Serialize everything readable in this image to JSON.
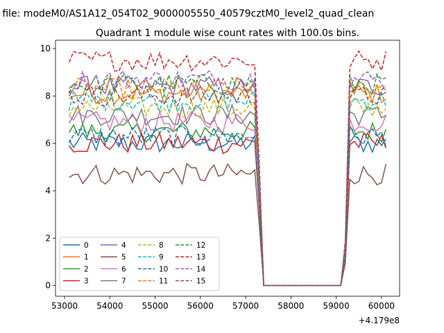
{
  "suptitle": "n file: modeM0/AS1A12_054T02_9000005550_40579cztM0_level2_quad_clean",
  "chart_data": {
    "type": "line",
    "title": "Quadrant 1 module wise count rates with 100.0s bins.",
    "xlabel": "",
    "ylabel": "",
    "x_offset_label": "+4.179e8",
    "xlim": [
      52800,
      60400
    ],
    "ylim": [
      -0.45,
      10.35
    ],
    "xticks": [
      53000,
      54000,
      55000,
      56000,
      57000,
      58000,
      59000,
      60000
    ],
    "yticks": [
      0,
      2,
      4,
      6,
      8,
      10
    ],
    "x_range": {
      "start": 53100,
      "step": 100,
      "count": 71
    },
    "gap_bins": [
      43,
      44,
      45,
      46,
      47,
      48,
      49,
      50,
      51,
      52,
      53,
      54,
      55,
      56,
      57,
      58,
      59,
      60
    ],
    "grid": false,
    "legend": {
      "location": "lower-left",
      "columns": 4
    },
    "series": [
      {
        "name": "0",
        "color": "#1f77b4",
        "dash": "solid",
        "level": 6.0
      },
      {
        "name": "1",
        "color": "#ff7f0e",
        "dash": "solid",
        "level": 8.1
      },
      {
        "name": "2",
        "color": "#2ca02c",
        "dash": "solid",
        "level": 6.5
      },
      {
        "name": "3",
        "color": "#d62728",
        "dash": "solid",
        "level": 6.0
      },
      {
        "name": "4",
        "color": "#9467bd",
        "dash": "solid",
        "level": 8.4
      },
      {
        "name": "5",
        "color": "#8c564b",
        "dash": "solid",
        "level": 4.7
      },
      {
        "name": "6",
        "color": "#e377c2",
        "dash": "solid",
        "level": 6.9
      },
      {
        "name": "7",
        "color": "#7f7f7f",
        "dash": "solid",
        "level": 7.2
      },
      {
        "name": "8",
        "color": "#bcbd22",
        "dash": "dashed",
        "level": 7.5
      },
      {
        "name": "9",
        "color": "#17becf",
        "dash": "dashed",
        "level": 7.8
      },
      {
        "name": "10",
        "color": "#1f77b4",
        "dash": "dashed",
        "level": 6.3
      },
      {
        "name": "11",
        "color": "#ff7f0e",
        "dash": "dashed",
        "level": 8.3
      },
      {
        "name": "12",
        "color": "#2ca02c",
        "dash": "dashed",
        "level": 8.5
      },
      {
        "name": "13",
        "color": "#d62728",
        "dash": "dashed",
        "level": 9.5
      },
      {
        "name": "14",
        "color": "#9467bd",
        "dash": "dashed",
        "level": 8.7
      },
      {
        "name": "15",
        "color": "#8c564b",
        "dash": "dashed",
        "level": 8.0
      }
    ]
  }
}
